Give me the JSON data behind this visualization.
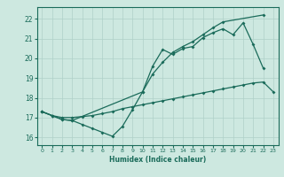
{
  "xlabel": "Humidex (Indice chaleur)",
  "bg_color": "#cde8e0",
  "line_color": "#1a6b5a",
  "grid_color": "#afd0c8",
  "xlim": [
    -0.5,
    23.5
  ],
  "ylim": [
    15.6,
    22.6
  ],
  "xticks": [
    0,
    1,
    2,
    3,
    4,
    5,
    6,
    7,
    8,
    9,
    10,
    11,
    12,
    13,
    14,
    15,
    16,
    17,
    18,
    19,
    20,
    21,
    22,
    23
  ],
  "yticks": [
    16,
    17,
    18,
    19,
    20,
    21,
    22
  ],
  "line_upper_x": [
    0,
    1,
    2,
    3,
    4,
    5,
    6,
    7,
    8,
    9,
    10,
    11,
    12,
    13,
    14,
    15,
    16,
    17,
    18,
    19,
    20,
    21,
    22
  ],
  "line_upper_y": [
    17.3,
    17.1,
    16.9,
    16.85,
    16.65,
    16.45,
    16.25,
    16.05,
    16.55,
    17.4,
    18.3,
    19.6,
    20.45,
    20.2,
    20.5,
    20.6,
    21.05,
    21.3,
    21.5,
    21.2,
    21.8,
    20.7,
    19.5
  ],
  "line_diag_x": [
    0,
    1,
    2,
    3,
    10,
    11,
    12,
    13,
    14,
    15,
    16,
    17,
    18,
    22
  ],
  "line_diag_y": [
    17.3,
    17.1,
    16.9,
    16.85,
    18.3,
    19.2,
    19.8,
    20.3,
    20.6,
    20.85,
    21.2,
    21.55,
    21.85,
    22.2
  ],
  "line_lower_x": [
    0,
    1,
    2,
    3,
    4,
    5,
    6,
    7,
    8,
    9,
    10,
    11,
    12,
    13,
    14,
    15,
    16,
    17,
    18,
    19,
    20,
    21,
    22,
    23
  ],
  "line_lower_y": [
    17.3,
    17.1,
    17.0,
    17.0,
    17.05,
    17.1,
    17.2,
    17.3,
    17.45,
    17.55,
    17.65,
    17.75,
    17.85,
    17.95,
    18.05,
    18.15,
    18.25,
    18.35,
    18.45,
    18.55,
    18.65,
    18.75,
    18.8,
    18.3
  ]
}
